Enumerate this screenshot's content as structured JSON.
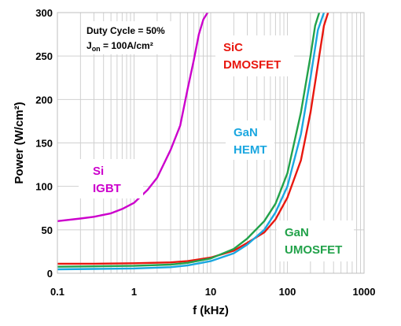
{
  "chart_data": {
    "type": "line",
    "xscale": "log",
    "xlim": [
      0.1,
      1000
    ],
    "ylim": [
      0,
      300
    ],
    "xticks": [
      "0.1",
      "1",
      "10",
      "100",
      "1000"
    ],
    "yticks": [
      "0",
      "50",
      "100",
      "150",
      "200",
      "250",
      "300"
    ],
    "xlabel": "f (kHz)",
    "ylabel": "Power (W/cm²)",
    "grid": true,
    "annotation": {
      "line1": "Duty Cycle = 50%",
      "line2": "J",
      "line2_sub": "on",
      "line2_rest": " = 100A/cm²"
    },
    "series": [
      {
        "label_lines": [
          "Si",
          "IGBT"
        ],
        "color": "#cc00cc",
        "x": [
          0.1,
          0.2,
          0.3,
          0.5,
          0.7,
          1,
          1.5,
          2,
          3,
          4,
          5,
          6,
          7,
          8,
          9.1
        ],
        "y": [
          60,
          63,
          65,
          69,
          74,
          81,
          96,
          110,
          142,
          170,
          212,
          245,
          275,
          292,
          300
        ]
      },
      {
        "label_lines": [
          "SiC",
          "DMOSFET"
        ],
        "color": "#e8170f",
        "x": [
          0.1,
          0.3,
          1,
          3,
          5,
          10,
          20,
          30,
          50,
          70,
          100,
          150,
          200,
          250,
          300,
          340
        ],
        "y": [
          11,
          11,
          11.5,
          12.5,
          14,
          18,
          26,
          35,
          47,
          62,
          87,
          130,
          185,
          240,
          285,
          300
        ]
      },
      {
        "label_lines": [
          "GaN",
          "HEMT"
        ],
        "color": "#1ba7e0",
        "x": [
          0.1,
          0.3,
          1,
          3,
          5,
          10,
          20,
          30,
          50,
          70,
          100,
          150,
          200,
          250,
          300
        ],
        "y": [
          4.5,
          5,
          5.5,
          7,
          9,
          14,
          23,
          33,
          50,
          70,
          100,
          160,
          225,
          280,
          300
        ]
      },
      {
        "label_lines": [
          "GaN",
          "UMOSFET"
        ],
        "color": "#22a24a",
        "x": [
          0.1,
          0.3,
          1,
          3,
          5,
          10,
          20,
          30,
          50,
          70,
          100,
          150,
          200,
          230,
          260
        ],
        "y": [
          7.5,
          8,
          8.5,
          10,
          12,
          17,
          28,
          40,
          60,
          80,
          115,
          185,
          250,
          285,
          300
        ]
      }
    ]
  }
}
